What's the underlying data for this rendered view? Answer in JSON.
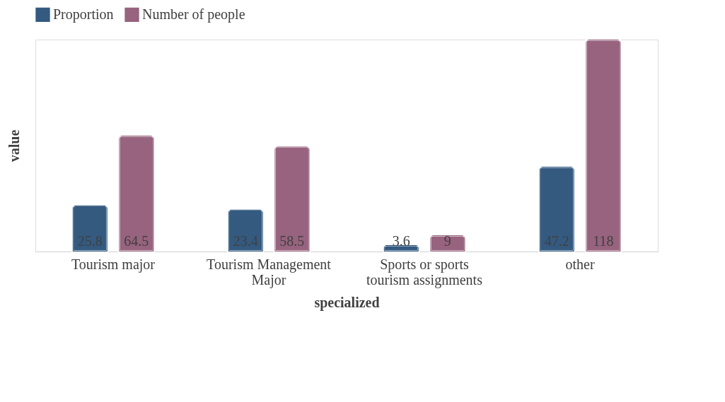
{
  "chart_data": {
    "type": "bar",
    "xlabel": "specialized",
    "ylabel": "value",
    "categories": [
      "Tourism major",
      "Tourism Management Major",
      "Sports or sports tourism assignments",
      "other"
    ],
    "series": [
      {
        "name": "Proportion",
        "color": "#345a80",
        "values": [
          25.8,
          23.4,
          3.6,
          47.2
        ]
      },
      {
        "name": "Number of people",
        "color": "#97637e",
        "values": [
          64.5,
          58.5,
          9,
          118
        ]
      }
    ],
    "data_labels": true,
    "legend": "top",
    "grid": false
  }
}
